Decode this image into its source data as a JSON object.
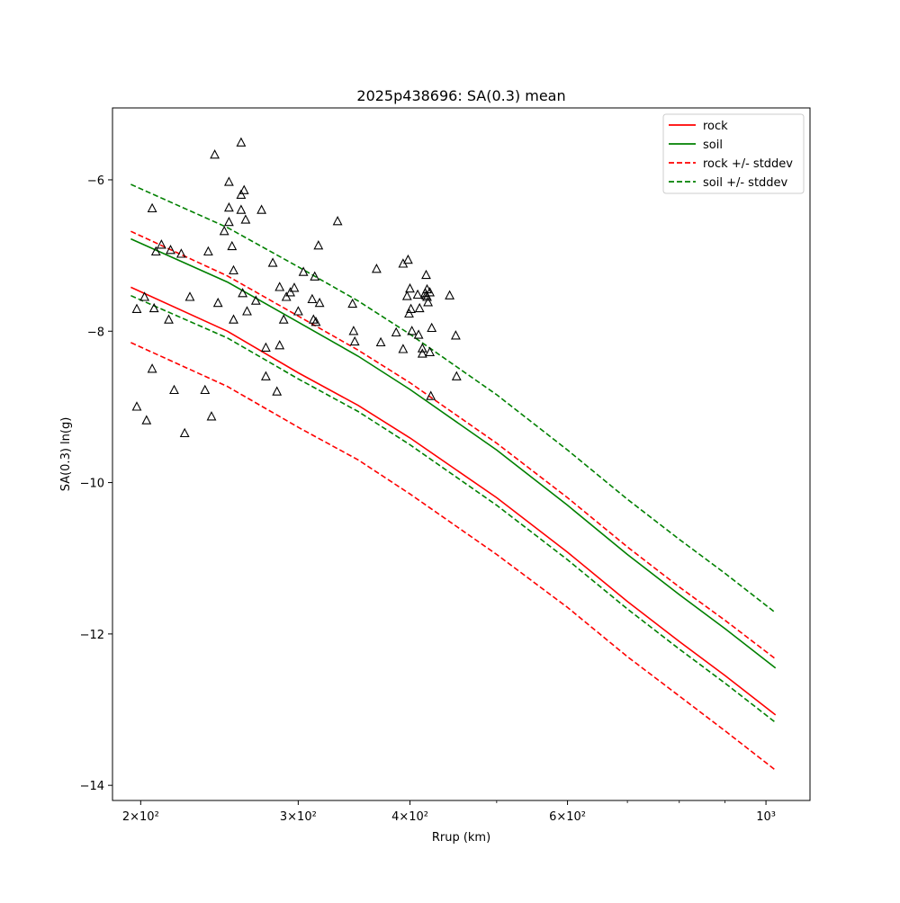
{
  "chart_data": {
    "type": "line",
    "title": "2025p438696: SA(0.3) mean",
    "xlabel": "Rrup (km)",
    "ylabel": "SA(0.3) ln(g)",
    "xscale": "log",
    "xlim": [
      186,
      1120
    ],
    "ylim": [
      -14.2,
      -5.05
    ],
    "x_ticks": [
      {
        "value": 200,
        "label": "2×10²"
      },
      {
        "value": 300,
        "label": "3×10²"
      },
      {
        "value": 400,
        "label": "4×10²"
      },
      {
        "value": 600,
        "label": "6×10²"
      },
      {
        "value": 1000,
        "label": "10³"
      }
    ],
    "x_minor_ticks": [
      500,
      700,
      800,
      900
    ],
    "y_ticks": [
      {
        "value": -14,
        "label": "−14"
      },
      {
        "value": -12,
        "label": "−12"
      },
      {
        "value": -10,
        "label": "−10"
      },
      {
        "value": -8,
        "label": "−8"
      },
      {
        "value": -6,
        "label": "−6"
      }
    ],
    "grid": false,
    "legend_position": "top-right",
    "x": [
      195,
      250,
      300,
      350,
      400,
      500,
      600,
      700,
      800,
      900,
      1025
    ],
    "series": [
      {
        "name": "rock",
        "color": "#ff0000",
        "style": "solid",
        "values": [
          -7.42,
          -8.0,
          -8.55,
          -8.98,
          -9.41,
          -10.2,
          -10.92,
          -11.57,
          -12.1,
          -12.55,
          -13.07
        ]
      },
      {
        "name": "soil",
        "color": "#008000",
        "style": "solid",
        "values": [
          -6.78,
          -7.35,
          -7.88,
          -8.33,
          -8.77,
          -9.57,
          -10.3,
          -10.95,
          -11.48,
          -11.93,
          -12.45
        ]
      },
      {
        "name": "rock +/- stddev",
        "color": "#ff0000",
        "style": "dashed",
        "values": [
          -6.68,
          -7.27,
          -7.8,
          -8.25,
          -8.68,
          -9.48,
          -10.2,
          -10.85,
          -11.38,
          -11.82,
          -12.33
        ],
        "lower_values": [
          -8.15,
          -8.73,
          -9.27,
          -9.7,
          -10.15,
          -10.95,
          -11.65,
          -12.3,
          -12.82,
          -13.28,
          -13.8
        ]
      },
      {
        "name": "soil +/- stddev",
        "color": "#008000",
        "style": "dashed",
        "values": [
          -6.06,
          -6.63,
          -7.15,
          -7.6,
          -8.04,
          -8.84,
          -9.57,
          -10.22,
          -10.75,
          -11.2,
          -11.72
        ],
        "lower_values": [
          -7.53,
          -8.09,
          -8.63,
          -9.06,
          -9.5,
          -10.3,
          -11.02,
          -11.67,
          -12.2,
          -12.65,
          -13.17
        ]
      }
    ],
    "observations": {
      "marker": "open-triangle",
      "color": "#000000",
      "points": [
        [
          198,
          -7.71
        ],
        [
          198,
          -9.0
        ],
        [
          202,
          -7.55
        ],
        [
          203,
          -9.18
        ],
        [
          206,
          -8.5
        ],
        [
          206,
          -6.38
        ],
        [
          207,
          -7.7
        ],
        [
          208,
          -6.95
        ],
        [
          211,
          -6.86
        ],
        [
          215,
          -7.85
        ],
        [
          216,
          -6.93
        ],
        [
          218,
          -8.78
        ],
        [
          222,
          -6.98
        ],
        [
          224,
          -9.35
        ],
        [
          227,
          -7.55
        ],
        [
          236,
          -8.78
        ],
        [
          238,
          -6.95
        ],
        [
          240,
          -9.13
        ],
        [
          242,
          -5.67
        ],
        [
          244,
          -7.63
        ],
        [
          248,
          -6.68
        ],
        [
          251,
          -6.37
        ],
        [
          251,
          -6.56
        ],
        [
          251,
          -6.03
        ],
        [
          253,
          -6.88
        ],
        [
          254,
          -7.2
        ],
        [
          254,
          -7.85
        ],
        [
          259,
          -5.51
        ],
        [
          259,
          -6.2
        ],
        [
          259,
          -6.4
        ],
        [
          260,
          -7.5
        ],
        [
          261,
          -6.14
        ],
        [
          262,
          -6.53
        ],
        [
          263,
          -7.74
        ],
        [
          269,
          -7.6
        ],
        [
          273,
          -6.4
        ],
        [
          276,
          -8.6
        ],
        [
          276,
          -8.22
        ],
        [
          281,
          -7.1
        ],
        [
          284,
          -8.8
        ],
        [
          286,
          -7.42
        ],
        [
          286,
          -8.19
        ],
        [
          289,
          -7.85
        ],
        [
          291,
          -7.55
        ],
        [
          294,
          -7.49
        ],
        [
          297,
          -7.43
        ],
        [
          300,
          -7.74
        ],
        [
          304,
          -7.22
        ],
        [
          311,
          -7.58
        ],
        [
          312,
          -7.85
        ],
        [
          313,
          -7.28
        ],
        [
          314,
          -7.88
        ],
        [
          316,
          -6.87
        ],
        [
          317,
          -7.63
        ],
        [
          332,
          -6.55
        ],
        [
          345,
          -7.64
        ],
        [
          346,
          -8.0
        ],
        [
          347,
          -8.14
        ],
        [
          367,
          -7.18
        ],
        [
          371,
          -8.15
        ],
        [
          386,
          -8.02
        ],
        [
          393,
          -8.24
        ],
        [
          393,
          -7.11
        ],
        [
          397,
          -7.54
        ],
        [
          398,
          -7.06
        ],
        [
          399,
          -7.77
        ],
        [
          400,
          -7.44
        ],
        [
          401,
          -7.71
        ],
        [
          402,
          -8.0
        ],
        [
          408,
          -7.52
        ],
        [
          409,
          -8.05
        ],
        [
          410,
          -7.7
        ],
        [
          413,
          -8.3
        ],
        [
          413,
          -8.23
        ],
        [
          416,
          -7.5
        ],
        [
          417,
          -7.53
        ],
        [
          417,
          -7.26
        ],
        [
          418,
          -7.45
        ],
        [
          418,
          -7.55
        ],
        [
          419,
          -7.62
        ],
        [
          421,
          -7.49
        ],
        [
          421,
          -8.28
        ],
        [
          422,
          -8.86
        ],
        [
          423,
          -7.96
        ],
        [
          443,
          -7.53
        ],
        [
          450,
          -8.06
        ],
        [
          451,
          -8.6
        ]
      ]
    }
  }
}
